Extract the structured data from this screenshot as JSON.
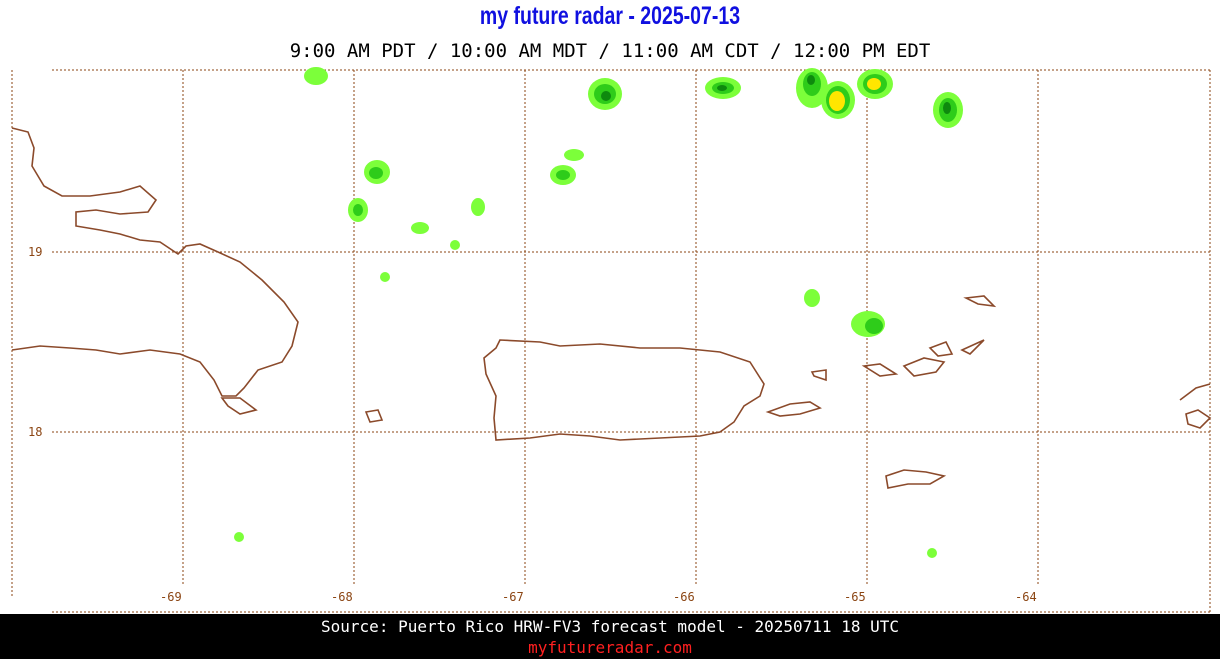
{
  "header": {
    "title": "my future radar - 2025-07-13",
    "subtitle": "9:00 AM PDT / 10:00 AM MDT / 11:00 AM CDT / 12:00 PM EDT"
  },
  "map": {
    "lat_labels": [
      19,
      18
    ],
    "lon_labels": [
      -69,
      -68,
      -67,
      -66,
      -65,
      -64
    ]
  },
  "footer": {
    "source": "Source: Puerto Rico HRW-FV3 forecast model - 20250711 18 UTC",
    "site": "myfutureradar.com"
  }
}
